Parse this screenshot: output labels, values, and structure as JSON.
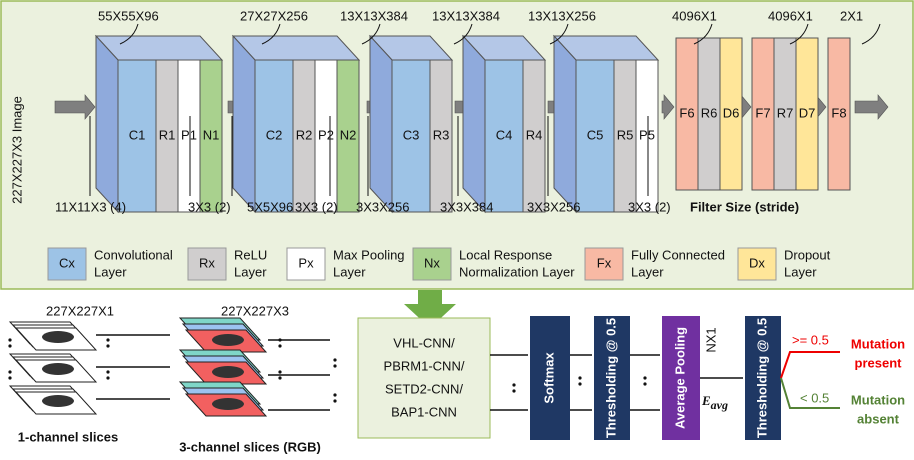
{
  "network": {
    "input_label": "227X227X3 Image",
    "blocks": [
      {
        "dim": "55X55X96",
        "layers": [
          "C1",
          "R1",
          "P1",
          "N1"
        ]
      },
      {
        "dim": "27X27X256",
        "layers": [
          "C2",
          "R2",
          "P2",
          "N2"
        ]
      },
      {
        "dim": "13X13X384",
        "layers": [
          "C3",
          "R3"
        ]
      },
      {
        "dim": "13X13X384",
        "layers": [
          "C4",
          "R4"
        ]
      },
      {
        "dim": "13X13X256",
        "layers": [
          "C5",
          "R5",
          "P5"
        ]
      },
      {
        "dim": "4096X1",
        "layers": [
          "F6",
          "R6",
          "D6"
        ]
      },
      {
        "dim": "4096X1",
        "layers": [
          "F7",
          "R7",
          "D7"
        ]
      },
      {
        "dim": "2X1",
        "layers": [
          "F8"
        ]
      }
    ],
    "filters": [
      "11X11X3 (4)",
      "3X3 (2)",
      "5X5X96",
      "3X3 (2)",
      "3X3X256",
      "3X3X384",
      "3X3X256",
      "3X3 (2)"
    ],
    "filter_caption": "Filter Size (stride)"
  },
  "legend": [
    {
      "code": "Cx",
      "lines": [
        "Convolutional",
        "Layer"
      ]
    },
    {
      "code": "Rx",
      "lines": [
        "ReLU",
        "Layer"
      ]
    },
    {
      "code": "Px",
      "lines": [
        "Max Pooling",
        "Layer"
      ]
    },
    {
      "code": "Nx",
      "lines": [
        "Local Response",
        "Normalization Layer"
      ]
    },
    {
      "code": "Fx",
      "lines": [
        "Fully Connected",
        "Layer"
      ]
    },
    {
      "code": "Dx",
      "lines": [
        "Dropout",
        "Layer"
      ]
    }
  ],
  "pipeline": {
    "input_size": "227X227X1",
    "rgb_size": "227X227X3",
    "input_caption": "1-channel slices",
    "rgb_caption": "3-channel slices (RGB)",
    "models": [
      "VHL-CNN/",
      "PBRM1-CNN/",
      "SETD2-CNN/",
      "BAP1-CNN"
    ],
    "softmax": "Softmax",
    "threshold_1": "Thresholding @ 0.5",
    "pooling": "Average Pooling",
    "pooled_size": "NX1",
    "e_main": "E",
    "e_sub": "avg",
    "threshold_2": "Thresholding @ 0.5",
    "high_rule": ">= 0.5",
    "high_result": [
      "Mutation",
      "present"
    ],
    "low_rule": "< 0.5",
    "low_result": [
      "Mutation",
      "absent"
    ]
  }
}
